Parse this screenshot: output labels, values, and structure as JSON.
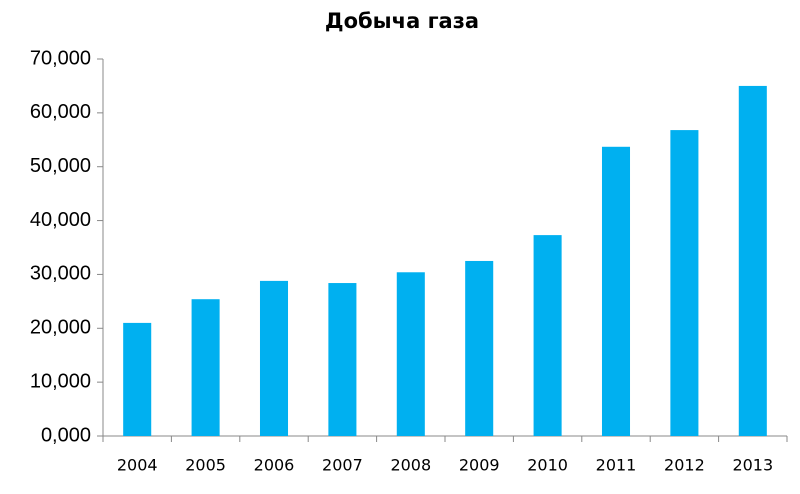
{
  "chart_data": {
    "type": "bar",
    "title": "Добыча газа",
    "categories": [
      "2004",
      "2005",
      "2006",
      "2007",
      "2008",
      "2009",
      "2010",
      "2011",
      "2012",
      "2013"
    ],
    "values": [
      21000,
      25400,
      28800,
      28400,
      30400,
      32500,
      37300,
      53700,
      56800,
      65000
    ],
    "color": "#00b0f0",
    "ylim": [
      0,
      70000
    ],
    "yticks": [
      {
        "value": 0,
        "label": "0,000"
      },
      {
        "value": 10000,
        "label": "10,000"
      },
      {
        "value": 20000,
        "label": "20,000"
      },
      {
        "value": 30000,
        "label": "30,000"
      },
      {
        "value": 40000,
        "label": "40,000"
      },
      {
        "value": 50000,
        "label": "50,000"
      },
      {
        "value": 60000,
        "label": "60,000"
      },
      {
        "value": 70000,
        "label": "70,000"
      }
    ],
    "grid": false
  }
}
